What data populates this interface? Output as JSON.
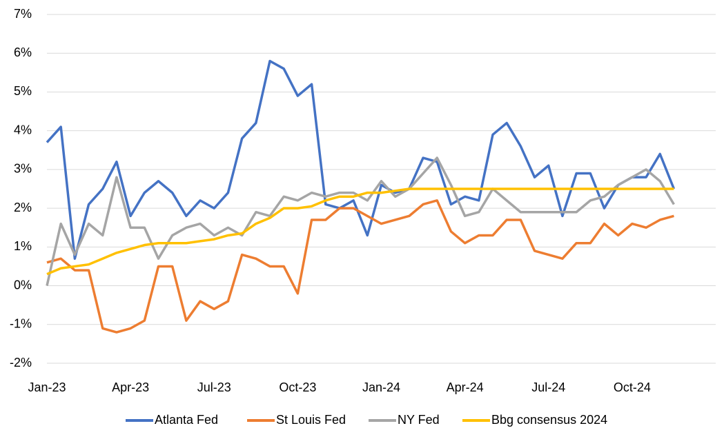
{
  "chart_data": {
    "type": "line",
    "x": [
      0,
      0.5,
      1,
      1.5,
      2,
      2.5,
      3,
      3.5,
      4,
      4.5,
      5,
      5.5,
      6,
      6.5,
      7,
      7.5,
      8,
      8.5,
      9,
      9.5,
      10,
      10.5,
      11,
      11.5,
      12,
      12.5,
      13,
      13.5,
      14,
      14.5,
      15,
      15.5,
      16,
      16.5,
      17,
      17.5,
      18,
      18.5,
      19,
      19.5,
      20,
      20.5,
      21,
      21.5,
      22,
      22.5
    ],
    "xlim": [
      0,
      24
    ],
    "xticks": [
      {
        "value": 0,
        "label": "Jan-23"
      },
      {
        "value": 3,
        "label": "Apr-23"
      },
      {
        "value": 6,
        "label": "Jul-23"
      },
      {
        "value": 9,
        "label": "Oct-23"
      },
      {
        "value": 12,
        "label": "Jan-24"
      },
      {
        "value": 15,
        "label": "Apr-24"
      },
      {
        "value": 18,
        "label": "Jul-24"
      },
      {
        "value": 21,
        "label": "Oct-24"
      }
    ],
    "ylim": [
      -2,
      7
    ],
    "yticks": [
      {
        "value": -2,
        "label": "-2%"
      },
      {
        "value": -1,
        "label": "-1%"
      },
      {
        "value": 0,
        "label": "0%"
      },
      {
        "value": 1,
        "label": "1%"
      },
      {
        "value": 2,
        "label": "2%"
      },
      {
        "value": 3,
        "label": "3%"
      },
      {
        "value": 4,
        "label": "4%"
      },
      {
        "value": 5,
        "label": "5%"
      },
      {
        "value": 6,
        "label": "6%"
      },
      {
        "value": 7,
        "label": "7%"
      }
    ],
    "grid": true,
    "legend": "bottom",
    "series": [
      {
        "name": "Atlanta Fed",
        "color": "#4472c4",
        "values": [
          3.7,
          4.1,
          0.7,
          2.1,
          2.5,
          3.2,
          1.8,
          2.4,
          2.7,
          2.4,
          1.8,
          2.2,
          2.0,
          2.4,
          3.8,
          4.2,
          5.8,
          5.6,
          4.9,
          5.2,
          2.1,
          2.0,
          2.2,
          1.3,
          2.6,
          2.4,
          2.5,
          3.3,
          3.2,
          2.1,
          2.3,
          2.2,
          3.9,
          4.2,
          3.6,
          2.8,
          3.1,
          1.8,
          2.9,
          2.9,
          2.0,
          2.6,
          2.8,
          2.8,
          3.4,
          2.5
        ]
      },
      {
        "name": "St Louis Fed",
        "color": "#ed7d31",
        "values": [
          0.6,
          0.7,
          0.4,
          0.4,
          -1.1,
          -1.2,
          -1.1,
          -0.9,
          0.5,
          0.5,
          -0.9,
          -0.4,
          -0.6,
          -0.4,
          0.8,
          0.7,
          0.5,
          0.5,
          -0.2,
          1.7,
          1.7,
          2.0,
          2.0,
          1.8,
          1.6,
          1.7,
          1.8,
          2.1,
          2.2,
          1.4,
          1.1,
          1.3,
          1.3,
          1.7,
          1.7,
          0.9,
          0.8,
          0.7,
          1.1,
          1.1,
          1.6,
          1.3,
          1.6,
          1.5,
          1.7,
          1.8
        ]
      },
      {
        "name": "NY Fed",
        "color": "#a5a5a5",
        "values": [
          0,
          1.6,
          0.8,
          1.6,
          1.3,
          2.8,
          1.5,
          1.5,
          0.7,
          1.3,
          1.5,
          1.6,
          1.3,
          1.5,
          1.3,
          1.9,
          1.8,
          2.3,
          2.2,
          2.4,
          2.3,
          2.4,
          2.4,
          2.2,
          2.7,
          2.3,
          2.5,
          2.9,
          3.3,
          2.6,
          1.8,
          1.9,
          2.5,
          2.2,
          1.9,
          1.9,
          1.9,
          1.9,
          1.9,
          2.2,
          2.3,
          2.6,
          2.8,
          3.0,
          2.7,
          2.1
        ]
      },
      {
        "name": "Bbg consensus 2024",
        "color": "#ffc000",
        "values": [
          0.3,
          0.45,
          0.5,
          0.55,
          0.7,
          0.85,
          0.95,
          1.05,
          1.1,
          1.1,
          1.1,
          1.15,
          1.2,
          1.3,
          1.35,
          1.6,
          1.75,
          2.0,
          2.0,
          2.05,
          2.2,
          2.3,
          2.3,
          2.4,
          2.4,
          2.45,
          2.5,
          2.5,
          2.5,
          2.5,
          2.5,
          2.5,
          2.5,
          2.5,
          2.5,
          2.5,
          2.5,
          2.5,
          2.5,
          2.5,
          2.5,
          2.5,
          2.5,
          2.5,
          2.5,
          2.5
        ]
      }
    ]
  }
}
